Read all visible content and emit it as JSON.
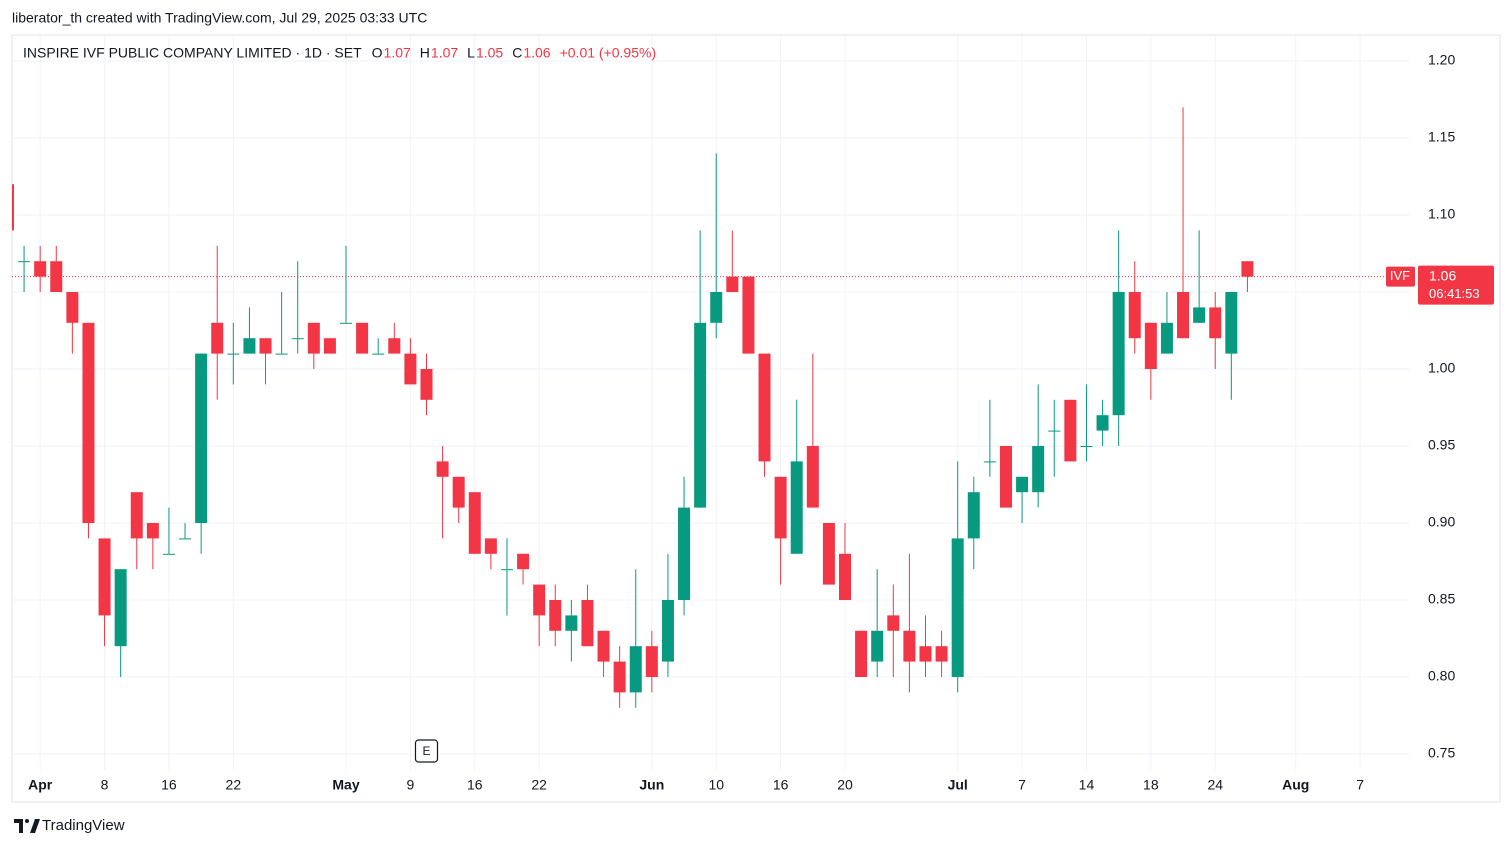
{
  "header": {
    "credit": "liberator_th created with TradingView.com, Jul 29, 2025 03:33 UTC"
  },
  "chart_data": {
    "type": "candlestick",
    "title": "INSPIRE IVF PUBLIC COMPANY LIMITED · 1D · SET",
    "legend": [
      {
        "label": "O",
        "value": "1.07"
      },
      {
        "label": "H",
        "value": "1.07"
      },
      {
        "label": "L",
        "value": "1.05"
      },
      {
        "label": "C",
        "value": "1.06"
      }
    ],
    "change": "+0.01 (+0.95%)",
    "symbol": "IVF",
    "last_price": {
      "value": 1.06,
      "label": "1.06"
    },
    "countdown": "06:41:53",
    "event_marker": {
      "x": 26,
      "label": "E"
    },
    "up_color": "#089981",
    "down_color": "#f23645",
    "open": [
      1.12,
      1.07,
      1.07,
      1.07,
      1.05,
      1.03,
      0.89,
      0.82,
      0.92,
      0.9,
      0.88,
      0.89,
      0.9,
      1.03,
      1.01,
      1.01,
      1.02,
      1.01,
      1.02,
      1.03,
      1.02,
      1.03,
      1.03,
      1.01,
      1.02,
      1.01,
      1.0,
      0.94,
      0.93,
      0.92,
      0.89,
      0.87,
      0.88,
      0.86,
      0.85,
      0.83,
      0.85,
      0.83,
      0.81,
      0.79,
      0.82,
      0.81,
      0.85,
      0.91,
      1.03,
      1.06,
      1.06,
      1.01,
      0.93,
      0.88,
      0.95,
      0.9,
      0.88,
      0.83,
      0.81,
      0.84,
      0.83,
      0.82,
      0.82,
      0.8,
      0.89,
      0.94,
      0.95,
      0.92,
      0.92,
      0.96,
      0.98,
      0.95,
      0.96,
      0.97,
      1.05,
      1.03,
      1.01,
      1.05,
      1.03,
      1.04,
      1.01,
      1.07
    ],
    "high": [
      1.12,
      1.08,
      1.08,
      1.08,
      1.05,
      1.03,
      0.89,
      0.87,
      0.92,
      0.9,
      0.91,
      0.9,
      1.01,
      1.08,
      1.03,
      1.04,
      1.02,
      1.05,
      1.07,
      1.03,
      1.02,
      1.08,
      1.03,
      1.02,
      1.03,
      1.02,
      1.01,
      0.95,
      0.93,
      0.92,
      0.89,
      0.89,
      0.88,
      0.86,
      0.86,
      0.85,
      0.86,
      0.83,
      0.82,
      0.87,
      0.83,
      0.88,
      0.93,
      1.09,
      1.14,
      1.09,
      1.06,
      1.01,
      0.93,
      0.98,
      1.01,
      0.9,
      0.9,
      0.83,
      0.87,
      0.86,
      0.88,
      0.84,
      0.83,
      0.94,
      0.93,
      0.98,
      0.95,
      0.93,
      0.99,
      0.98,
      0.98,
      0.99,
      0.98,
      1.09,
      1.07,
      1.03,
      1.05,
      1.17,
      1.09,
      1.05,
      1.05,
      1.07
    ],
    "low": [
      1.09,
      1.05,
      1.05,
      1.05,
      1.01,
      0.89,
      0.82,
      0.8,
      0.87,
      0.87,
      0.88,
      0.89,
      0.88,
      0.98,
      0.99,
      1.01,
      0.99,
      1.01,
      1.01,
      1.0,
      1.01,
      1.03,
      1.01,
      1.01,
      1.01,
      0.99,
      0.97,
      0.89,
      0.9,
      0.88,
      0.87,
      0.84,
      0.86,
      0.82,
      0.82,
      0.81,
      0.82,
      0.8,
      0.78,
      0.78,
      0.79,
      0.8,
      0.84,
      0.91,
      1.02,
      1.05,
      1.01,
      0.93,
      0.86,
      0.88,
      0.91,
      0.86,
      0.85,
      0.8,
      0.8,
      0.8,
      0.79,
      0.8,
      0.8,
      0.79,
      0.87,
      0.93,
      0.91,
      0.9,
      0.91,
      0.93,
      0.94,
      0.94,
      0.95,
      0.95,
      1.01,
      0.98,
      1.01,
      1.02,
      1.03,
      1.0,
      0.98,
      1.05
    ],
    "close": [
      1.09,
      1.07,
      1.06,
      1.05,
      1.03,
      0.9,
      0.84,
      0.87,
      0.89,
      0.89,
      0.88,
      0.89,
      1.01,
      1.01,
      1.01,
      1.02,
      1.01,
      1.01,
      1.02,
      1.01,
      1.01,
      1.03,
      1.01,
      1.01,
      1.01,
      0.99,
      0.98,
      0.93,
      0.91,
      0.88,
      0.88,
      0.87,
      0.87,
      0.84,
      0.83,
      0.84,
      0.82,
      0.81,
      0.79,
      0.82,
      0.8,
      0.85,
      0.91,
      1.03,
      1.05,
      1.05,
      1.01,
      0.94,
      0.89,
      0.94,
      0.91,
      0.86,
      0.85,
      0.8,
      0.83,
      0.83,
      0.81,
      0.81,
      0.81,
      0.89,
      0.92,
      0.94,
      0.91,
      0.93,
      0.95,
      0.96,
      0.94,
      0.95,
      0.97,
      1.05,
      1.02,
      1.0,
      1.03,
      1.02,
      1.04,
      1.02,
      1.05,
      1.06
    ],
    "xlim": [
      0.25,
      87.1
    ],
    "xticks": [
      {
        "value": 2,
        "label": "Apr"
      },
      {
        "value": 6,
        "label": "8"
      },
      {
        "value": 10,
        "label": "16"
      },
      {
        "value": 14,
        "label": "22"
      },
      {
        "value": 21,
        "label": "May"
      },
      {
        "value": 25,
        "label": "9"
      },
      {
        "value": 29,
        "label": "16"
      },
      {
        "value": 33,
        "label": "22"
      },
      {
        "value": 40,
        "label": "Jun"
      },
      {
        "value": 44,
        "label": "10"
      },
      {
        "value": 48,
        "label": "16"
      },
      {
        "value": 52,
        "label": "20"
      },
      {
        "value": 59,
        "label": "Jul"
      },
      {
        "value": 63,
        "label": "7"
      },
      {
        "value": 67,
        "label": "14"
      },
      {
        "value": 71,
        "label": "18"
      },
      {
        "value": 75,
        "label": "24"
      },
      {
        "value": 80,
        "label": "Aug"
      },
      {
        "value": 84,
        "label": "7"
      }
    ],
    "ylim": [
      0.7396,
      1.2169
    ],
    "yticks": [
      {
        "value": 0.75,
        "label": "0.75"
      },
      {
        "value": 0.8,
        "label": "0.80"
      },
      {
        "value": 0.85,
        "label": "0.85"
      },
      {
        "value": 0.9,
        "label": "0.90"
      },
      {
        "value": 0.95,
        "label": "0.95"
      },
      {
        "value": 1.0,
        "label": "1.00"
      },
      {
        "value": 1.05,
        "label": "1.05"
      },
      {
        "value": 1.1,
        "label": "1.10"
      },
      {
        "value": 1.15,
        "label": "1.15"
      },
      {
        "value": 1.2,
        "label": "1.20"
      }
    ],
    "grid": true
  },
  "footer": {
    "brand": "TradingView"
  }
}
